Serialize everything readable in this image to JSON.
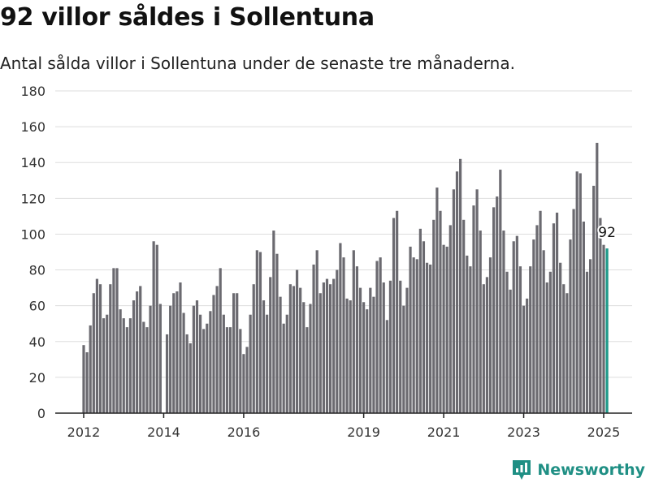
{
  "title": "92 villor såldes i Sollentuna",
  "subtitle": "Antal sålda villor i Sollentuna under de senaste tre månaderna.",
  "brand": "Newsworthy",
  "colors": {
    "bar": "#6b6a70",
    "highlight": "#1f9a8a",
    "grid": "#dddddd",
    "axis": "#222222",
    "brand": "#1f8f84"
  },
  "chart_data": {
    "type": "bar",
    "title": "92 villor såldes i Sollentuna",
    "subtitle": "Antal sålda villor i Sollentuna under de senaste tre månaderna.",
    "xlabel": "",
    "ylabel": "",
    "ylim": [
      0,
      180
    ],
    "yticks": [
      0,
      20,
      40,
      60,
      80,
      100,
      120,
      140,
      160,
      180
    ],
    "xticks": [
      "2012",
      "2014",
      "2016",
      "2019",
      "2021",
      "2023",
      "2025"
    ],
    "x_start": "2012-01",
    "x_end": "2025-01",
    "grid": true,
    "highlight_last": true,
    "last_value_label": "92",
    "values": [
      38,
      34,
      49,
      67,
      75,
      72,
      53,
      55,
      72,
      81,
      81,
      58,
      53,
      48,
      53,
      63,
      68,
      71,
      51,
      48,
      60,
      96,
      94,
      61,
      0,
      44,
      60,
      67,
      68,
      73,
      56,
      44,
      39,
      60,
      63,
      55,
      47,
      50,
      57,
      66,
      71,
      81,
      55,
      48,
      48,
      67,
      67,
      47,
      33,
      37,
      55,
      72,
      91,
      90,
      63,
      55,
      76,
      102,
      89,
      65,
      50,
      55,
      72,
      71,
      80,
      70,
      62,
      48,
      61,
      83,
      91,
      67,
      73,
      75,
      72,
      75,
      80,
      95,
      87,
      64,
      63,
      91,
      82,
      70,
      62,
      58,
      70,
      65,
      85,
      87,
      73,
      52,
      74,
      109,
      113,
      74,
      60,
      70,
      93,
      87,
      86,
      103,
      96,
      84,
      83,
      108,
      126,
      113,
      94,
      93,
      105,
      125,
      135,
      142,
      108,
      88,
      82,
      116,
      125,
      102,
      72,
      76,
      87,
      115,
      121,
      136,
      102,
      79,
      69,
      96,
      99,
      82,
      60,
      64,
      82,
      97,
      105,
      113,
      91,
      73,
      79,
      106,
      112,
      84,
      72,
      67,
      97,
      114,
      135,
      134,
      107,
      79,
      86,
      127,
      151,
      109,
      94,
      92
    ]
  }
}
